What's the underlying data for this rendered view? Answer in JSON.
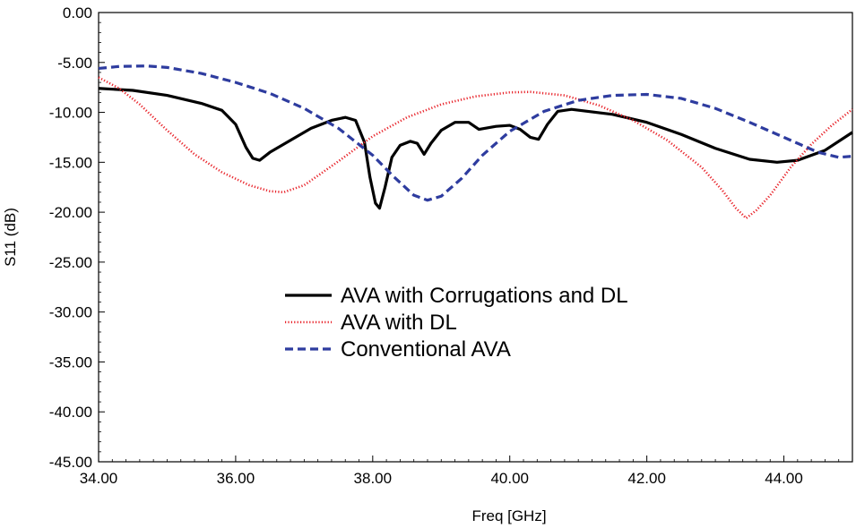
{
  "chart_data": {
    "type": "line",
    "title": "",
    "xlabel": "Freq [GHz]",
    "ylabel": "S11 (dB)",
    "xlim": [
      34,
      45
    ],
    "ylim": [
      -45,
      0
    ],
    "x_ticks": [
      34,
      36,
      38,
      40,
      42,
      44
    ],
    "x_tick_labels": [
      "34.00",
      "36.00",
      "38.00",
      "40.00",
      "42.00",
      "44.00"
    ],
    "y_ticks": [
      0,
      -5,
      -10,
      -15,
      -20,
      -25,
      -30,
      -35,
      -40,
      -45
    ],
    "y_tick_labels": [
      "0.00",
      "-5.00",
      "-10.00",
      "-15.00",
      "-20.00",
      "-25.00",
      "-30.00",
      "-35.00",
      "-40.00",
      "-45.00"
    ],
    "grid": false,
    "legend_position": "center",
    "series": [
      {
        "name": "AVA with Corrugations and DL",
        "color": "#000000",
        "style": "solid",
        "points": [
          [
            34.0,
            -7.6
          ],
          [
            34.5,
            -7.8
          ],
          [
            35.0,
            -8.3
          ],
          [
            35.5,
            -9.1
          ],
          [
            35.8,
            -9.8
          ],
          [
            36.0,
            -11.2
          ],
          [
            36.15,
            -13.5
          ],
          [
            36.25,
            -14.6
          ],
          [
            36.35,
            -14.8
          ],
          [
            36.5,
            -14.0
          ],
          [
            36.8,
            -12.8
          ],
          [
            37.1,
            -11.6
          ],
          [
            37.4,
            -10.8
          ],
          [
            37.6,
            -10.5
          ],
          [
            37.75,
            -10.8
          ],
          [
            37.88,
            -13.0
          ],
          [
            37.96,
            -16.5
          ],
          [
            38.04,
            -19.1
          ],
          [
            38.1,
            -19.6
          ],
          [
            38.18,
            -17.5
          ],
          [
            38.28,
            -14.5
          ],
          [
            38.4,
            -13.3
          ],
          [
            38.55,
            -12.9
          ],
          [
            38.65,
            -13.1
          ],
          [
            38.75,
            -14.2
          ],
          [
            38.85,
            -13.1
          ],
          [
            39.0,
            -11.8
          ],
          [
            39.2,
            -11.0
          ],
          [
            39.4,
            -11.0
          ],
          [
            39.55,
            -11.7
          ],
          [
            39.8,
            -11.4
          ],
          [
            40.0,
            -11.3
          ],
          [
            40.15,
            -11.7
          ],
          [
            40.3,
            -12.5
          ],
          [
            40.42,
            -12.7
          ],
          [
            40.55,
            -11.2
          ],
          [
            40.7,
            -9.9
          ],
          [
            40.9,
            -9.7
          ],
          [
            41.5,
            -10.2
          ],
          [
            42.0,
            -11.0
          ],
          [
            42.5,
            -12.2
          ],
          [
            43.0,
            -13.6
          ],
          [
            43.5,
            -14.7
          ],
          [
            43.9,
            -15.0
          ],
          [
            44.2,
            -14.8
          ],
          [
            44.6,
            -13.8
          ],
          [
            45.0,
            -12.0
          ]
        ]
      },
      {
        "name": "AVA with DL",
        "color": "#e8232a",
        "style": "dotted",
        "points": [
          [
            34.0,
            -6.5
          ],
          [
            34.3,
            -7.6
          ],
          [
            34.6,
            -9.2
          ],
          [
            35.0,
            -11.8
          ],
          [
            35.4,
            -14.2
          ],
          [
            35.8,
            -16.0
          ],
          [
            36.2,
            -17.3
          ],
          [
            36.5,
            -17.9
          ],
          [
            36.7,
            -18.0
          ],
          [
            37.0,
            -17.3
          ],
          [
            37.5,
            -14.9
          ],
          [
            38.0,
            -12.4
          ],
          [
            38.5,
            -10.5
          ],
          [
            39.0,
            -9.2
          ],
          [
            39.5,
            -8.4
          ],
          [
            40.0,
            -8.0
          ],
          [
            40.3,
            -7.95
          ],
          [
            40.8,
            -8.3
          ],
          [
            41.3,
            -9.3
          ],
          [
            41.8,
            -10.8
          ],
          [
            42.3,
            -12.8
          ],
          [
            42.8,
            -15.5
          ],
          [
            43.1,
            -17.8
          ],
          [
            43.3,
            -19.6
          ],
          [
            43.45,
            -20.6
          ],
          [
            43.6,
            -19.8
          ],
          [
            43.8,
            -18.3
          ],
          [
            44.1,
            -15.5
          ],
          [
            44.4,
            -13.2
          ],
          [
            44.7,
            -11.3
          ],
          [
            45.0,
            -9.7
          ]
        ]
      },
      {
        "name": "Conventional AVA",
        "color": "#2e3c9f",
        "style": "dashed",
        "points": [
          [
            34.0,
            -5.6
          ],
          [
            34.3,
            -5.4
          ],
          [
            34.7,
            -5.35
          ],
          [
            35.0,
            -5.5
          ],
          [
            35.5,
            -6.1
          ],
          [
            36.0,
            -7.0
          ],
          [
            36.5,
            -8.1
          ],
          [
            37.0,
            -9.6
          ],
          [
            37.5,
            -11.6
          ],
          [
            38.0,
            -14.3
          ],
          [
            38.3,
            -16.4
          ],
          [
            38.6,
            -18.3
          ],
          [
            38.8,
            -18.8
          ],
          [
            39.0,
            -18.4
          ],
          [
            39.3,
            -16.6
          ],
          [
            39.6,
            -14.3
          ],
          [
            40.0,
            -11.9
          ],
          [
            40.5,
            -9.9
          ],
          [
            41.0,
            -8.8
          ],
          [
            41.5,
            -8.3
          ],
          [
            42.0,
            -8.2
          ],
          [
            42.5,
            -8.6
          ],
          [
            43.0,
            -9.6
          ],
          [
            43.5,
            -11.0
          ],
          [
            44.0,
            -12.5
          ],
          [
            44.5,
            -14.0
          ],
          [
            44.8,
            -14.5
          ],
          [
            45.0,
            -14.4
          ]
        ]
      }
    ]
  }
}
